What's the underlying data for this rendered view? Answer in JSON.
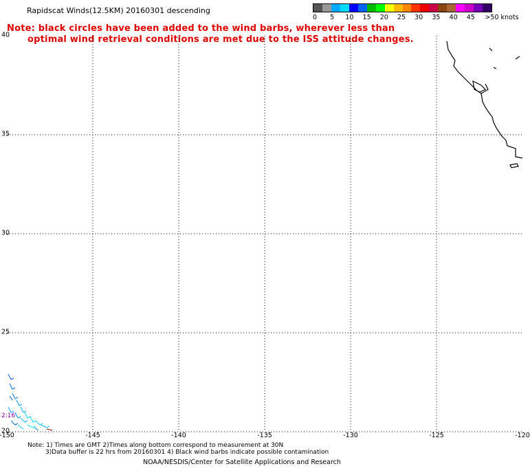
{
  "title": "Rapidscat Winds(12.5KM) 20160301 descending",
  "note": {
    "line1": "Note: black circles have been added to the wind barbs, wherever less than",
    "line2": "optimal wind retrieval conditions are met due to the ISS attitude changes."
  },
  "colorbar": {
    "colors": [
      "#555555",
      "#999999",
      "#00aaff",
      "#00ddff",
      "#0000ff",
      "#0066ff",
      "#00bb00",
      "#00ff00",
      "#ffff00",
      "#ffbb00",
      "#ff8800",
      "#ff3300",
      "#ee0000",
      "#cc0044",
      "#8b4513",
      "#aa6633",
      "#ff00ff",
      "#cc00cc",
      "#7700bb",
      "#330066"
    ],
    "labels": [
      "0",
      "5",
      "10",
      "15",
      "20",
      "25",
      "30",
      "35",
      "40",
      "45",
      ">50 knots"
    ]
  },
  "map": {
    "lat_labels": [
      "40",
      "35",
      "30",
      "25",
      "20"
    ],
    "lon_labels": [
      "-150",
      "-145",
      "-140",
      "-135",
      "-130",
      "-125",
      "-120"
    ],
    "coastline_color": "#000000",
    "grid": "dotted"
  },
  "time_label": "2:16",
  "footnote": {
    "line1": "Note: 1) Times are GMT 2)Times along bottom correspond to measurement at 30N",
    "line2": "3)Data buffer is 22 hrs from 20160301 4) Black wind barbs indicate possible contamination"
  },
  "credit": "NOAA/NESDIS/Center for Satellite Applications and Research"
}
